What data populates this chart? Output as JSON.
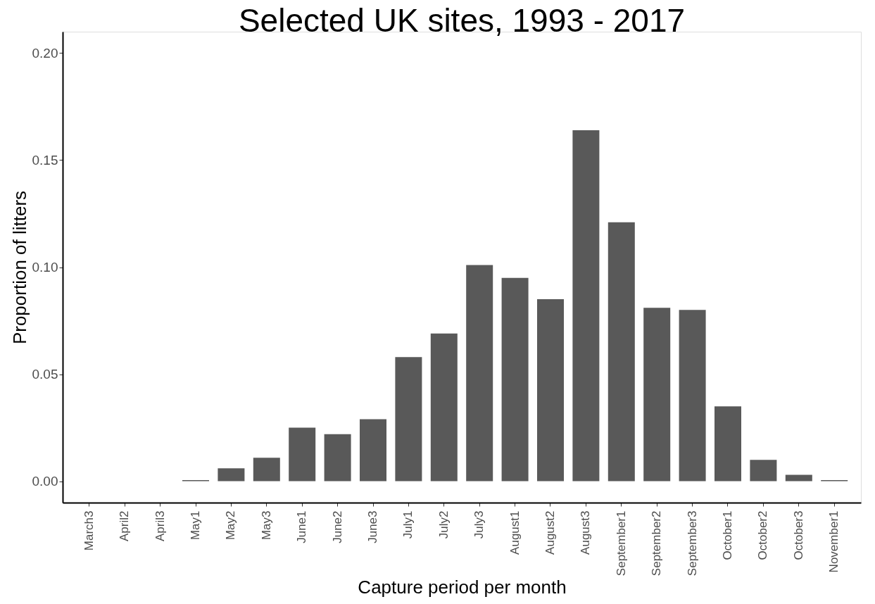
{
  "chart_data": {
    "type": "bar",
    "title": "Selected UK sites, 1993 - 2017",
    "xlabel": "Capture period per month",
    "ylabel": "Proportion of litters",
    "categories": [
      "March3",
      "April2",
      "April3",
      "May1",
      "May2",
      "May3",
      "June1",
      "June2",
      "June3",
      "July1",
      "July2",
      "July3",
      "August1",
      "August2",
      "August3",
      "September1",
      "September2",
      "September3",
      "October1",
      "October2",
      "October3",
      "November1"
    ],
    "values": [
      0,
      0,
      0,
      0.0005,
      0.006,
      0.011,
      0.025,
      0.022,
      0.029,
      0.058,
      0.069,
      0.101,
      0.095,
      0.085,
      0.164,
      0.121,
      0.081,
      0.08,
      0.035,
      0.01,
      0.003,
      0.0005
    ],
    "color": "#595959",
    "ylim": [
      -0.01,
      0.21
    ],
    "yticks": [
      {
        "value": 0,
        "label": "0.00"
      },
      {
        "value": 0.05,
        "label": "0.05"
      },
      {
        "value": 0.1,
        "label": "0.10"
      },
      {
        "value": 0.15,
        "label": "0.15"
      },
      {
        "value": 0.2,
        "label": "0.20"
      }
    ],
    "grid": false
  }
}
